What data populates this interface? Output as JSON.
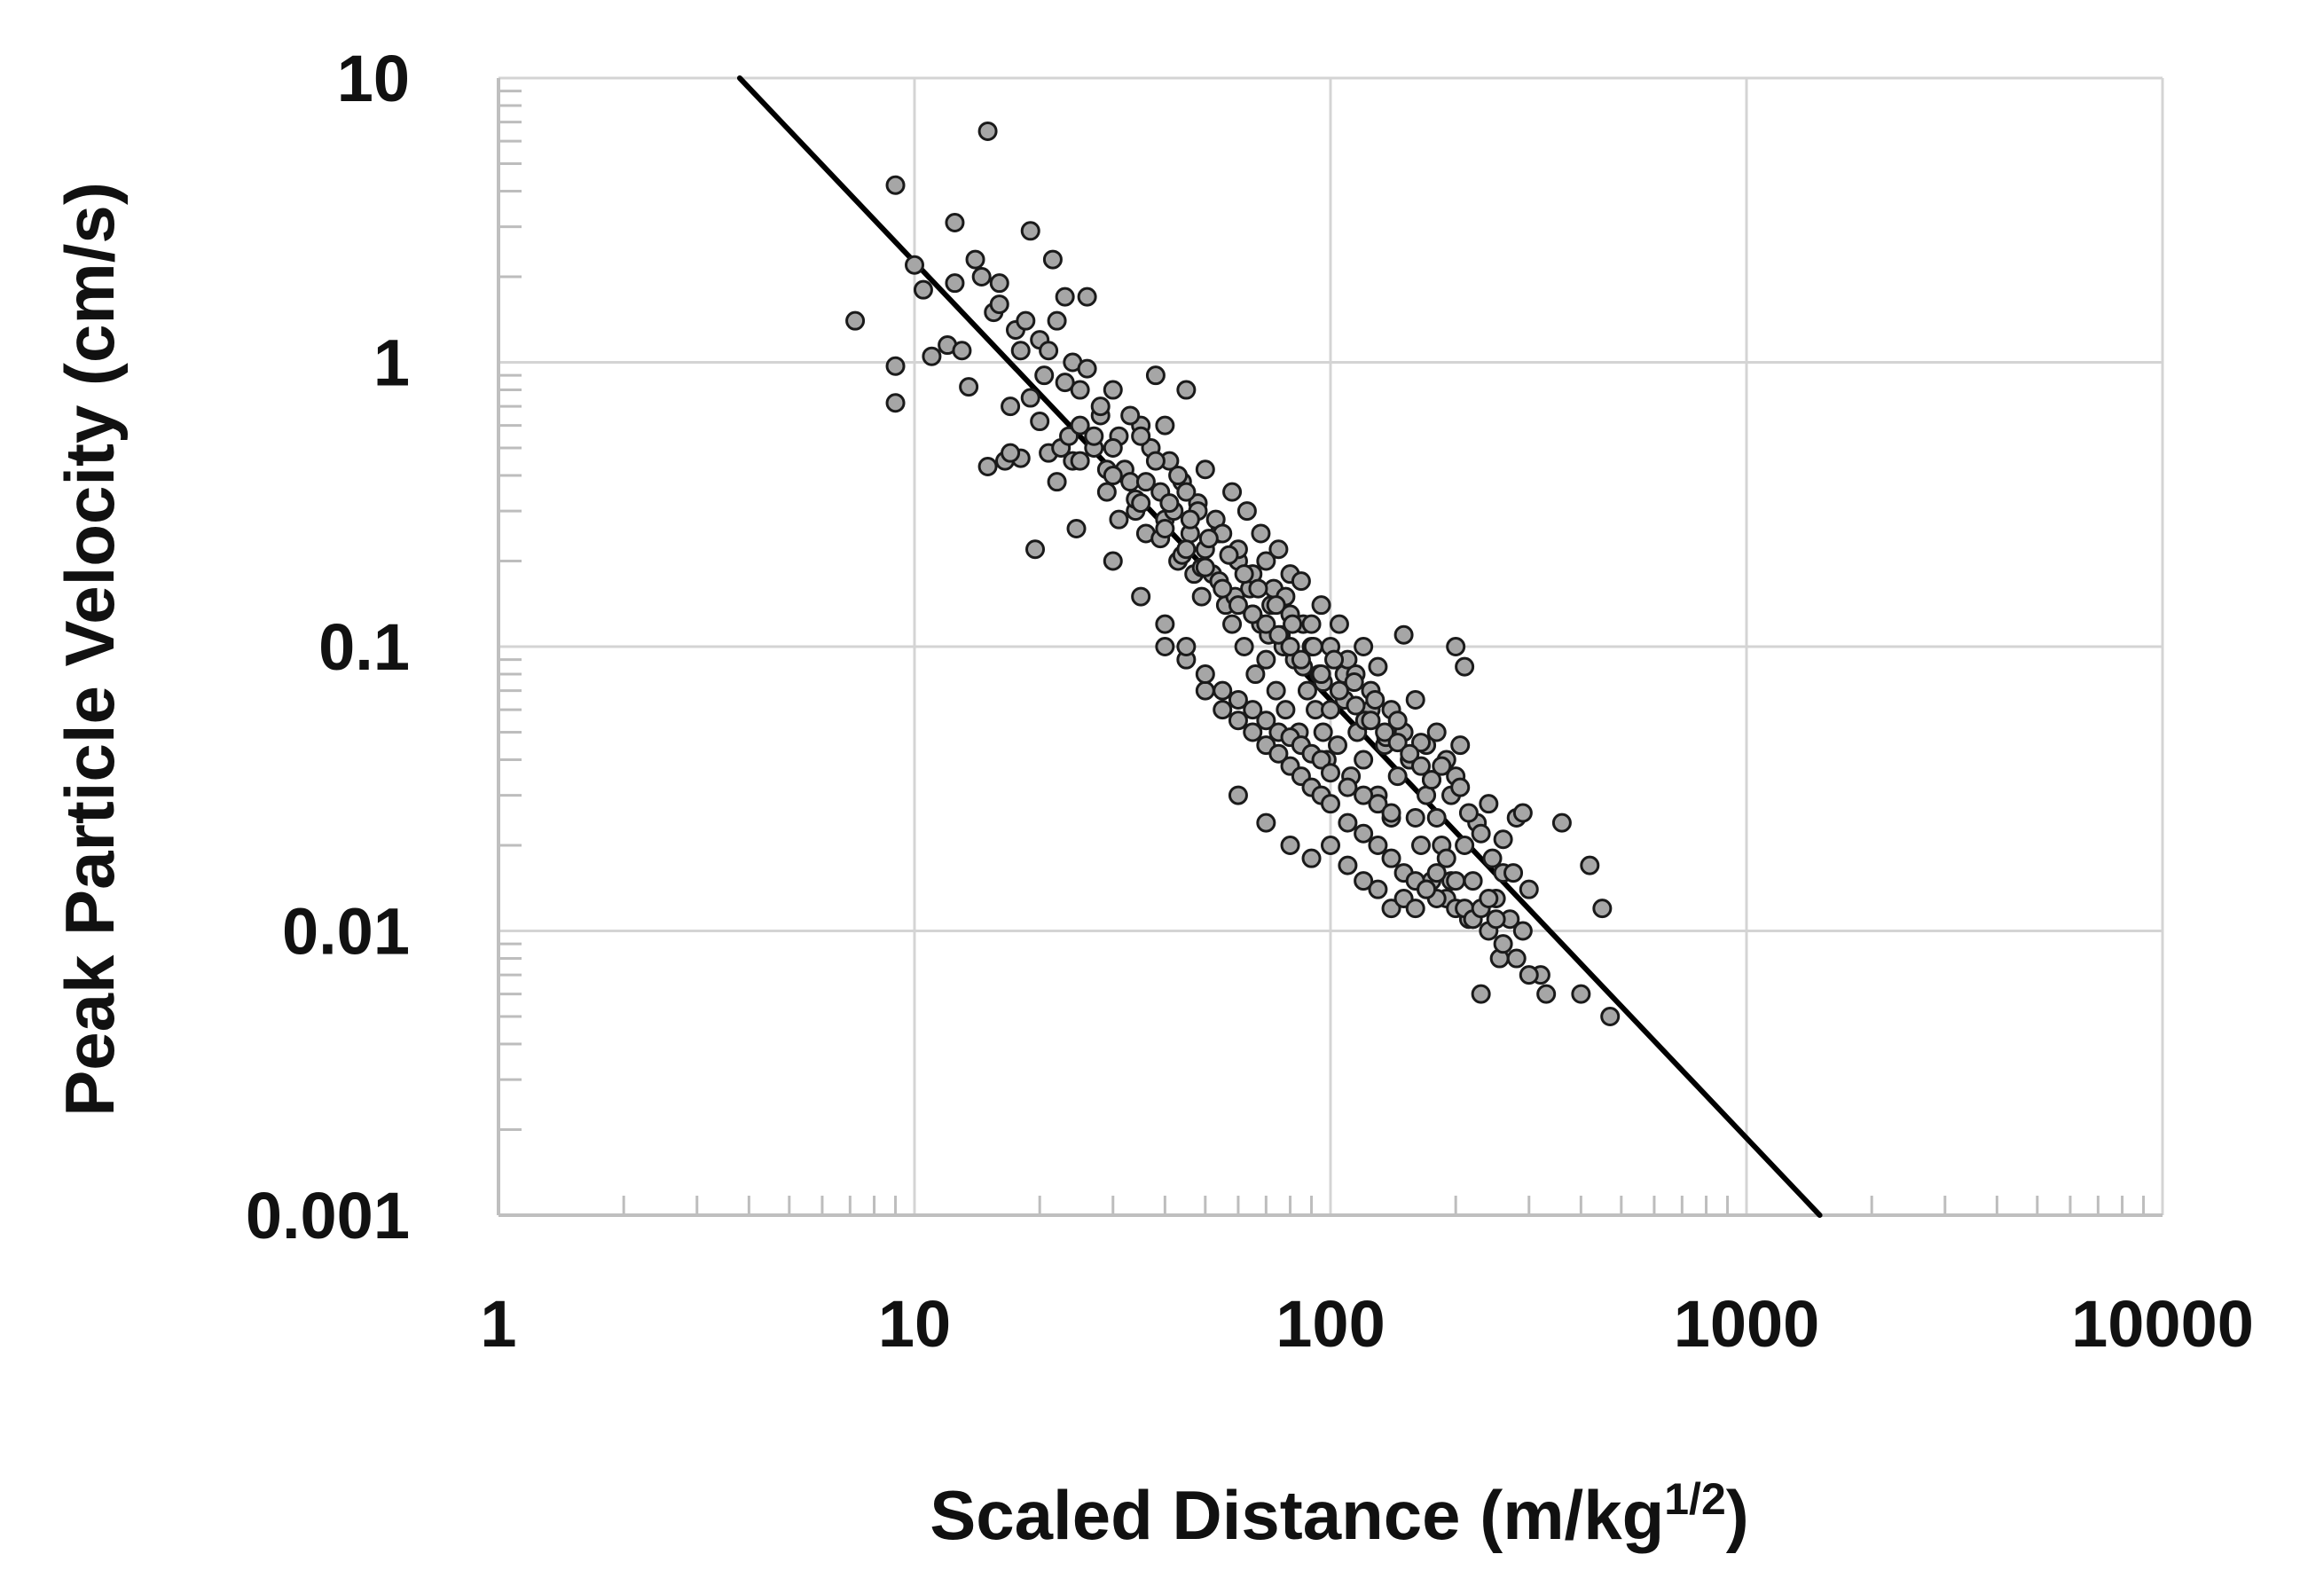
{
  "chart_data": {
    "type": "scatter",
    "title": "",
    "xlabel": "Scaled Distance (m/kg",
    "xlabel_sup": "1/2",
    "xlabel_tail": ")",
    "ylabel": "Peak Particle Velocity (cm/s)",
    "x_scale": "log",
    "y_scale": "log",
    "xlim": [
      1,
      10000
    ],
    "ylim": [
      0.001,
      10
    ],
    "x_ticks": [
      "1",
      "10",
      "100",
      "1000",
      "10000"
    ],
    "y_ticks": [
      "0.001",
      "0.01",
      "0.1",
      "1",
      "10"
    ],
    "grid": true,
    "legend": "none",
    "series": [
      {
        "marker": "circle",
        "fill_color": "#a6a6a6",
        "edge_color": "#1a1a1a",
        "x": [
          15,
          9,
          12.5,
          9,
          7.2,
          9,
          10,
          10.5,
          11,
          12,
          12.5,
          13,
          13.5,
          14,
          14.5,
          15,
          15.5,
          16,
          16.5,
          17,
          17.5,
          18,
          18.5,
          19,
          19.5,
          20,
          20.5,
          21,
          21.5,
          22,
          22.5,
          23,
          23.5,
          24,
          24.5,
          25,
          26,
          27,
          28,
          29,
          30,
          31,
          32,
          33,
          34,
          35,
          36,
          37,
          38,
          39,
          40,
          41,
          42,
          43,
          44,
          45,
          46,
          47,
          48,
          49,
          50,
          52,
          54,
          56,
          58,
          60,
          62,
          64,
          66,
          68,
          70,
          72,
          74,
          76,
          78,
          80,
          82,
          84,
          86,
          88,
          90,
          92,
          94,
          96,
          98,
          100,
          104,
          108,
          112,
          116,
          120,
          125,
          130,
          135,
          140,
          145,
          150,
          155,
          160,
          165,
          170,
          175,
          180,
          185,
          190,
          195,
          200,
          205,
          210,
          215,
          220,
          225,
          230,
          240,
          250,
          255,
          260,
          270,
          280,
          290,
          300,
          320,
          330,
          360,
          400,
          420,
          450,
          470,
          19,
          21,
          23,
          26,
          28,
          30,
          33,
          35,
          38,
          40,
          43,
          45,
          48,
          50,
          53,
          55,
          58,
          60,
          63,
          65,
          68,
          70,
          73,
          75,
          78,
          80,
          85,
          90,
          95,
          100,
          105,
          110,
          115,
          120,
          125,
          130,
          140,
          150,
          160,
          170,
          180,
          190,
          200,
          210,
          16,
          17,
          18,
          20,
          22,
          24,
          25,
          27,
          29,
          31,
          34,
          36,
          39,
          41,
          44,
          46,
          49,
          51,
          54,
          57,
          59,
          62,
          65,
          67,
          71,
          74,
          77,
          81,
          86,
          91,
          96,
          102,
          108,
          114,
          121,
          128,
          136,
          145,
          155,
          165,
          175,
          185,
          195,
          205,
          215,
          230,
          245,
          260,
          275,
          290,
          40,
          45,
          50,
          55,
          60,
          65,
          70,
          75,
          80,
          85,
          90,
          95,
          100,
          110,
          120,
          130,
          140,
          150,
          160,
          170,
          180,
          200,
          220,
          240,
          260,
          280,
          300,
          60,
          70,
          80,
          90,
          100,
          110,
          120,
          130,
          140,
          150,
          160,
          170,
          180,
          190,
          200,
          210,
          220,
          230,
          240,
          250,
          30,
          35,
          40,
          45,
          50,
          55,
          60,
          65,
          70,
          75,
          80,
          85,
          90,
          95,
          100,
          110,
          120,
          130,
          140,
          25,
          30,
          35,
          40,
          45,
          50,
          55,
          60,
          65,
          70,
          75,
          80,
          85,
          95,
          105,
          115,
          125,
          135,
          145,
          155,
          165,
          175
        ],
        "y": [
          6.5,
          4.2,
          3.1,
          0.97,
          1.4,
          0.72,
          2.2,
          1.8,
          1.05,
          1.15,
          1.9,
          1.1,
          0.82,
          2.3,
          2.0,
          0.43,
          1.5,
          1.6,
          0.45,
          0.7,
          1.3,
          0.46,
          1.4,
          2.9,
          0.22,
          1.2,
          0.9,
          0.48,
          2.3,
          1.4,
          0.5,
          1.7,
          0.55,
          1.0,
          0.26,
          0.6,
          1.7,
          0.5,
          0.65,
          0.35,
          0.8,
          0.55,
          0.42,
          0.38,
          0.3,
          0.6,
          0.25,
          0.5,
          0.9,
          0.35,
          0.28,
          0.45,
          0.3,
          0.2,
          0.38,
          0.8,
          0.25,
          0.18,
          0.32,
          0.15,
          0.22,
          0.18,
          0.25,
          0.14,
          0.12,
          0.2,
          0.1,
          0.16,
          0.08,
          0.12,
          0.09,
          0.14,
          0.07,
          0.11,
          0.06,
          0.18,
          0.09,
          0.05,
          0.12,
          0.07,
          0.1,
          0.06,
          0.08,
          0.05,
          0.04,
          0.06,
          0.045,
          0.08,
          0.035,
          0.05,
          0.04,
          0.06,
          0.03,
          0.045,
          0.025,
          0.035,
          0.11,
          0.04,
          0.025,
          0.02,
          0.03,
          0.015,
          0.025,
          0.02,
          0.013,
          0.015,
          0.1,
          0.045,
          0.02,
          0.011,
          0.015,
          0.024,
          0.006,
          0.028,
          0.013,
          0.008,
          0.016,
          0.011,
          0.025,
          0.01,
          0.014,
          0.007,
          0.006,
          0.024,
          0.006,
          0.017,
          0.012,
          0.005,
          0.75,
          1.1,
          0.85,
          0.95,
          0.7,
          0.5,
          0.65,
          0.55,
          0.45,
          0.6,
          0.4,
          0.35,
          0.3,
          0.42,
          0.28,
          0.25,
          0.35,
          0.22,
          0.3,
          0.18,
          0.25,
          0.2,
          0.16,
          0.22,
          0.15,
          0.13,
          0.17,
          0.12,
          0.14,
          0.1,
          0.12,
          0.09,
          0.08,
          0.1,
          0.07,
          0.085,
          0.06,
          0.05,
          0.065,
          0.045,
          0.05,
          0.04,
          0.035,
          0.085,
          1.9,
          0.48,
          1.1,
          0.62,
          0.38,
          0.45,
          0.8,
          0.55,
          0.42,
          0.28,
          0.33,
          0.38,
          0.24,
          0.32,
          0.21,
          0.28,
          0.19,
          0.24,
          0.17,
          0.21,
          0.15,
          0.18,
          0.13,
          0.16,
          0.11,
          0.14,
          0.1,
          0.12,
          0.085,
          0.1,
          0.075,
          0.09,
          0.065,
          0.075,
          0.055,
          0.065,
          0.048,
          0.055,
          0.04,
          0.046,
          0.034,
          0.038,
          0.03,
          0.032,
          0.026,
          0.022,
          0.018,
          0.021,
          0.016,
          0.026,
          0.1,
          0.09,
          0.07,
          0.06,
          0.055,
          0.05,
          0.045,
          0.042,
          0.038,
          0.035,
          0.032,
          0.03,
          0.028,
          0.024,
          0.022,
          0.02,
          0.018,
          0.016,
          0.015,
          0.014,
          0.013,
          0.012,
          0.011,
          0.01,
          0.009,
          0.008,
          0.007,
          0.03,
          0.024,
          0.02,
          0.018,
          0.02,
          0.017,
          0.015,
          0.014,
          0.012,
          0.013,
          0.012,
          0.014,
          0.016,
          0.018,
          0.015,
          0.012,
          0.011,
          0.012,
          0.013,
          0.011,
          0.2,
          0.15,
          0.12,
          0.1,
          0.08,
          0.07,
          0.065,
          0.06,
          0.055,
          0.05,
          0.048,
          0.045,
          0.042,
          0.04,
          0.036,
          0.032,
          0.03,
          0.028,
          0.026,
          0.45,
          0.4,
          0.32,
          0.26,
          0.22,
          0.19,
          0.16,
          0.14,
          0.13,
          0.12,
          0.11,
          0.1,
          0.09,
          0.08,
          0.07,
          0.062,
          0.055,
          0.05,
          0.046,
          0.042,
          0.038,
          0.034
        ]
      },
      {
        "type": "line",
        "color": "#000000",
        "x": [
          3.8,
          1500
        ],
        "y": [
          10,
          0.001
        ]
      }
    ]
  }
}
